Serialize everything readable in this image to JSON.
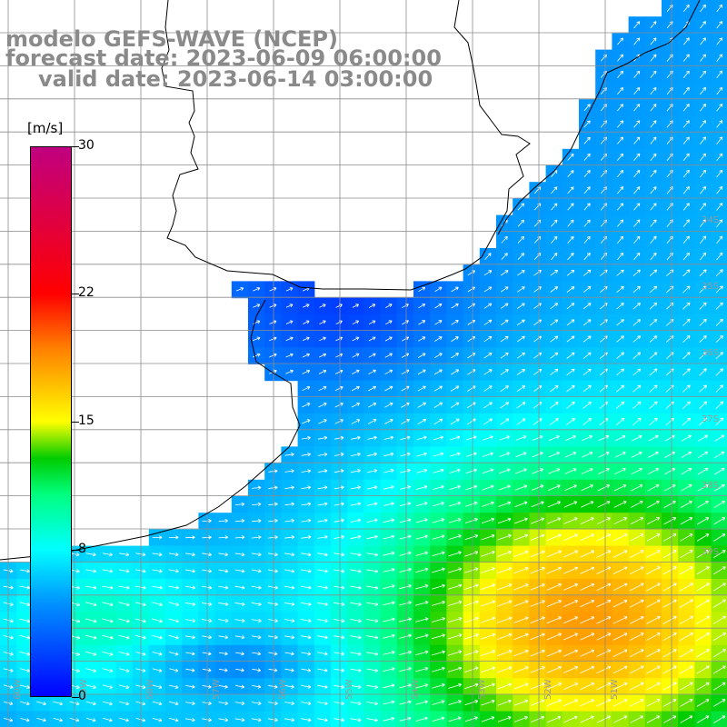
{
  "title": {
    "line1": "modelo GEFS-WAVE (NCEP)",
    "line2": "forecast date: 2023-06-09 06:00:00",
    "line3": "valid date: 2023-06-14 03:00:00"
  },
  "colorbar": {
    "unit": "[m/s]",
    "min": 0,
    "max": 30,
    "ticks": [
      {
        "value": 30,
        "label": "30"
      },
      {
        "value": 22,
        "label": "22"
      },
      {
        "value": 15,
        "label": "15"
      },
      {
        "value": 8,
        "label": "8"
      },
      {
        "value": 0,
        "label": "0"
      }
    ],
    "stops": [
      {
        "value": 0,
        "color": "#0000ff"
      },
      {
        "value": 5,
        "color": "#0090ff"
      },
      {
        "value": 8,
        "color": "#00ffff"
      },
      {
        "value": 11,
        "color": "#00ff80"
      },
      {
        "value": 13,
        "color": "#00cc00"
      },
      {
        "value": 15,
        "color": "#ffff00"
      },
      {
        "value": 19,
        "color": "#ff8000"
      },
      {
        "value": 22,
        "color": "#ff0000"
      },
      {
        "value": 30,
        "color": "#c00080"
      }
    ]
  },
  "map": {
    "field": "wind speed and direction",
    "background_color": "#ffffff",
    "coastline_color": "#000000",
    "grid_color": "#8c8c8c",
    "label_color": "#9a9a9a",
    "lat_labels": [
      "34S",
      "35S",
      "36S",
      "37S",
      "38S",
      "39S"
    ],
    "lon_labels": [
      "60W",
      "59W",
      "58W",
      "57W",
      "56W",
      "55W",
      "54W",
      "53W",
      "52W",
      "51W"
    ],
    "arrow_color": "#ffffff"
  }
}
